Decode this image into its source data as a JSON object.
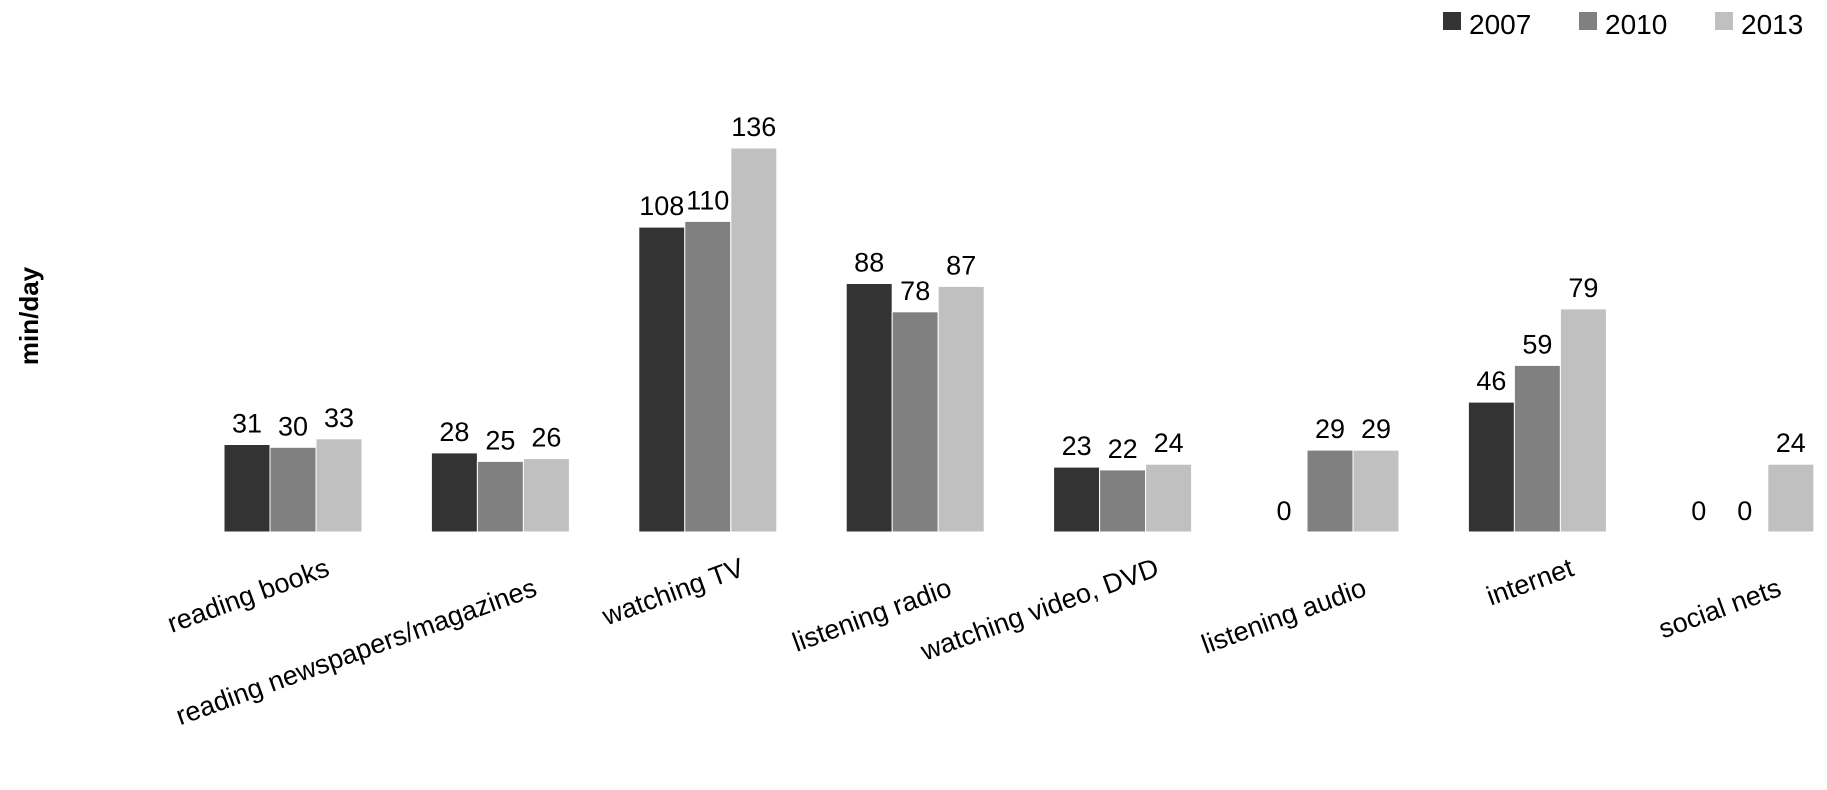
{
  "chart_data": {
    "type": "bar",
    "title": "",
    "xlabel": "",
    "ylabel": "min/day",
    "ylim": [
      0,
      150
    ],
    "grid": false,
    "legend": "top-right",
    "categories": [
      "reading books",
      "reading newspapers/magazines",
      "watching TV",
      "listening radio",
      "watching video, DVD",
      "listening audio",
      "internet",
      "social nets"
    ],
    "series": [
      {
        "name": "2007",
        "color": "#333333",
        "values": [
          31,
          28,
          108,
          88,
          23,
          0,
          46,
          0
        ]
      },
      {
        "name": "2010",
        "color": "#808080",
        "values": [
          30,
          25,
          110,
          78,
          22,
          29,
          59,
          0
        ]
      },
      {
        "name": "2013",
        "color": "#c0c0c0",
        "values": [
          33,
          26,
          136,
          87,
          24,
          29,
          79,
          24
        ]
      }
    ]
  }
}
